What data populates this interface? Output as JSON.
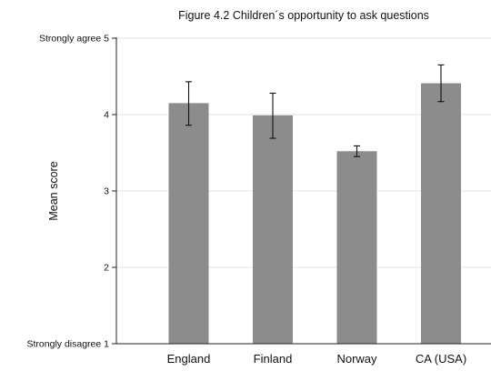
{
  "chart_data": {
    "type": "bar",
    "title": "Figure 4.2 Children´s opportunity to ask questions",
    "ylabel": "Mean score",
    "xlabel": "",
    "categories": [
      "England",
      "Finland",
      "Norway",
      "CA (USA)"
    ],
    "values": [
      4.15,
      3.99,
      3.52,
      4.41
    ],
    "error_low": [
      3.86,
      3.69,
      3.45,
      4.17
    ],
    "error_high": [
      4.43,
      4.28,
      3.59,
      4.65
    ],
    "ylim": [
      1,
      5
    ],
    "yticks": [
      {
        "value": 5,
        "label": "Strongly agree 5"
      },
      {
        "value": 4,
        "label": "4"
      },
      {
        "value": 3,
        "label": "3"
      },
      {
        "value": 2,
        "label": "2"
      },
      {
        "value": 1,
        "label": "Strongly disagree 1"
      }
    ],
    "grid": true,
    "bar_color": "#8c8c8c"
  }
}
